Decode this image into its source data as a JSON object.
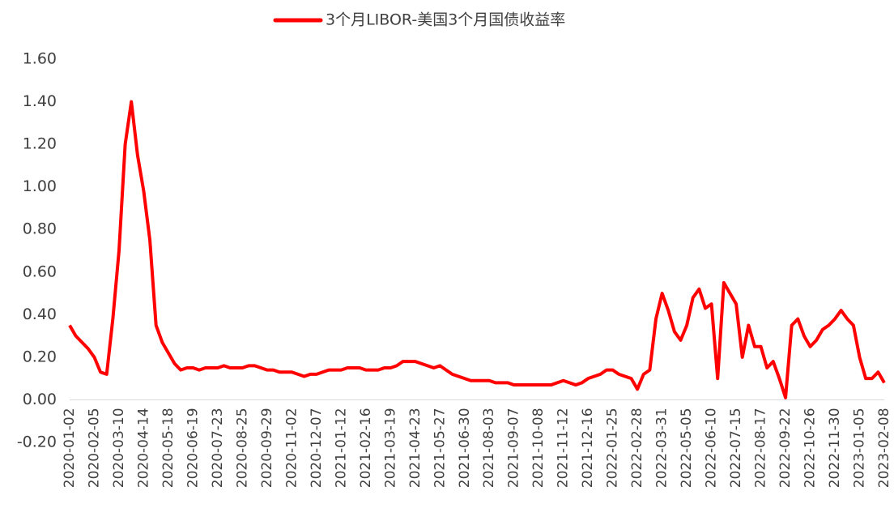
{
  "chart_data": {
    "type": "line",
    "legend_title": null,
    "categories": [
      "2020-01-02",
      null,
      null,
      null,
      "2020-02-05",
      null,
      null,
      null,
      "2020-03-10",
      null,
      null,
      null,
      "2020-04-14",
      null,
      null,
      null,
      "2020-05-18",
      null,
      null,
      null,
      "2020-06-19",
      null,
      null,
      null,
      "2020-07-23",
      null,
      null,
      null,
      "2020-08-25",
      null,
      null,
      null,
      "2020-09-29",
      null,
      null,
      null,
      "2020-11-02",
      null,
      null,
      null,
      "2020-12-07",
      null,
      null,
      null,
      "2021-01-12",
      null,
      null,
      null,
      "2021-02-16",
      null,
      null,
      null,
      "2021-03-19",
      null,
      null,
      null,
      "2021-04-23",
      null,
      null,
      null,
      "2021-05-27",
      null,
      null,
      null,
      "2021-06-30",
      null,
      null,
      null,
      "2021-08-03",
      null,
      null,
      null,
      "2021-09-07",
      null,
      null,
      null,
      "2021-10-08",
      null,
      null,
      null,
      "2021-11-12",
      null,
      null,
      null,
      "2021-12-16",
      null,
      null,
      null,
      "2022-01-25",
      null,
      null,
      null,
      "2022-02-28",
      null,
      null,
      null,
      "2022-03-31",
      null,
      null,
      null,
      "2022-05-05",
      null,
      null,
      null,
      "2022-06-10",
      null,
      null,
      null,
      "2022-07-15",
      null,
      null,
      null,
      "2022-08-17",
      null,
      null,
      null,
      "2022-09-22",
      null,
      null,
      null,
      "2022-10-26",
      null,
      null,
      null,
      "2022-11-30",
      null,
      null,
      null,
      "2023-01-05",
      null,
      null,
      null,
      "2023-02-08"
    ],
    "series": [
      {
        "name": "3个月LIBOR-美国3个月国债收益率",
        "color": "#ff0000",
        "values": [
          0.35,
          0.3,
          0.27,
          0.24,
          0.2,
          0.13,
          0.12,
          0.38,
          0.7,
          1.2,
          1.4,
          1.15,
          0.98,
          0.75,
          0.35,
          0.27,
          0.22,
          0.17,
          0.14,
          0.15,
          0.15,
          0.14,
          0.15,
          0.15,
          0.15,
          0.16,
          0.15,
          0.15,
          0.15,
          0.16,
          0.16,
          0.15,
          0.14,
          0.14,
          0.13,
          0.13,
          0.13,
          0.12,
          0.11,
          0.12,
          0.12,
          0.13,
          0.14,
          0.14,
          0.14,
          0.15,
          0.15,
          0.15,
          0.14,
          0.14,
          0.14,
          0.15,
          0.15,
          0.16,
          0.18,
          0.18,
          0.18,
          0.17,
          0.16,
          0.15,
          0.16,
          0.14,
          0.12,
          0.11,
          0.1,
          0.09,
          0.09,
          0.09,
          0.09,
          0.08,
          0.08,
          0.08,
          0.07,
          0.07,
          0.07,
          0.07,
          0.07,
          0.07,
          0.07,
          0.08,
          0.09,
          0.08,
          0.07,
          0.08,
          0.1,
          0.11,
          0.12,
          0.14,
          0.14,
          0.12,
          0.11,
          0.1,
          0.05,
          0.12,
          0.14,
          0.38,
          0.5,
          0.42,
          0.32,
          0.28,
          0.35,
          0.48,
          0.52,
          0.43,
          0.45,
          0.1,
          0.55,
          0.5,
          0.45,
          0.2,
          0.35,
          0.25,
          0.25,
          0.15,
          0.18,
          0.1,
          0.01,
          0.35,
          0.38,
          0.3,
          0.25,
          0.28,
          0.33,
          0.35,
          0.38,
          0.42,
          0.38,
          0.35,
          0.2,
          0.1,
          0.1,
          0.13,
          0.08
        ]
      }
    ],
    "ylim": [
      -0.2,
      1.6
    ],
    "yticks": [
      {
        "value": -0.2,
        "label": "-0.20"
      },
      {
        "value": 0,
        "label": "0.00"
      },
      {
        "value": 0.2,
        "label": "0.20"
      },
      {
        "value": 0.4,
        "label": "0.40"
      },
      {
        "value": 0.6,
        "label": "0.60"
      },
      {
        "value": 0.8,
        "label": "0.80"
      },
      {
        "value": 1.0,
        "label": "1.00"
      },
      {
        "value": 1.2,
        "label": "1.20"
      },
      {
        "value": 1.4,
        "label": "1.40"
      },
      {
        "value": 1.6,
        "label": "1.60"
      }
    ],
    "grid": false,
    "legend": "top"
  }
}
